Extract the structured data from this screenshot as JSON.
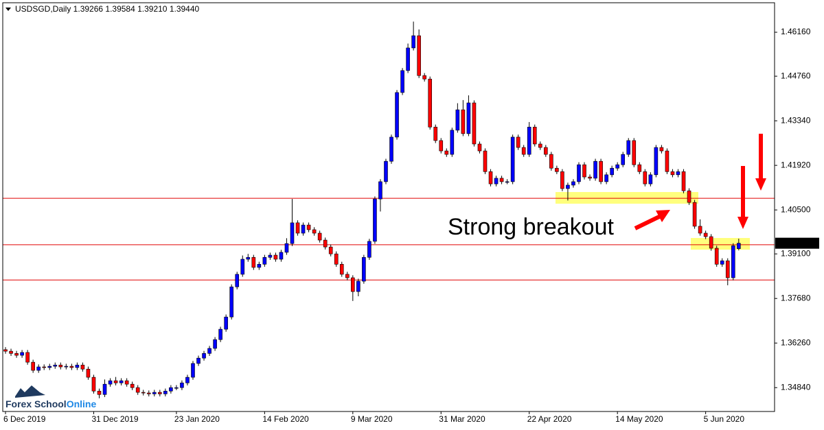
{
  "chart_data": {
    "type": "candlestick",
    "title": "USDSGD,Daily  1.39266 1.39584 1.39210 1.39440",
    "annotation": "Strong breakout",
    "watermark": [
      "Forex School",
      "Online"
    ],
    "up_color": "#0000ff",
    "down_color": "#ff0000",
    "level_color": "#e00000",
    "ylim": [
      1.3408,
      1.471
    ],
    "yticks": [
      {
        "value": 1.4616,
        "label": "1.46160"
      },
      {
        "value": 1.4476,
        "label": "1.44760"
      },
      {
        "value": 1.4334,
        "label": "1.43340"
      },
      {
        "value": 1.4192,
        "label": "1.41920"
      },
      {
        "value": 1.405,
        "label": "1.40500"
      },
      {
        "value": 1.391,
        "label": "1.39100"
      },
      {
        "value": 1.3768,
        "label": "1.37680"
      },
      {
        "value": 1.3626,
        "label": "1.36260"
      },
      {
        "value": 1.3484,
        "label": "1.34840"
      }
    ],
    "price_label": {
      "value": 1.3944,
      "label": "1.39440"
    },
    "levels": [
      1.4087,
      1.3939,
      1.3827
    ],
    "categories": [
      "6 Dec 2019",
      null,
      null,
      null,
      null,
      null,
      null,
      null,
      null,
      null,
      null,
      null,
      null,
      null,
      null,
      null,
      "31 Dec 2019",
      null,
      null,
      null,
      null,
      null,
      null,
      null,
      null,
      null,
      null,
      null,
      null,
      null,
      null,
      "23 Jan 2020",
      null,
      null,
      null,
      null,
      null,
      null,
      null,
      null,
      null,
      null,
      null,
      null,
      null,
      null,
      null,
      "14 Feb 2020",
      null,
      null,
      null,
      null,
      null,
      null,
      null,
      null,
      null,
      null,
      null,
      null,
      null,
      null,
      null,
      "9 Mar 2020",
      null,
      null,
      null,
      null,
      null,
      null,
      null,
      null,
      null,
      null,
      null,
      null,
      null,
      null,
      null,
      "31 Mar 2020",
      null,
      null,
      null,
      null,
      null,
      null,
      null,
      null,
      null,
      null,
      null,
      null,
      null,
      null,
      null,
      "22 Apr 2020",
      null,
      null,
      null,
      null,
      null,
      null,
      null,
      null,
      null,
      null,
      null,
      null,
      null,
      null,
      null,
      "14 May 2020",
      null,
      null,
      null,
      null,
      null,
      null,
      null,
      null,
      null,
      null,
      null,
      null,
      null,
      null,
      null,
      "5 Jun 2020",
      null,
      null,
      null,
      null,
      null,
      null
    ],
    "open": [
      1.3605,
      1.36,
      1.3593,
      1.3587,
      1.3596,
      1.3565,
      1.3539,
      1.355,
      1.3548,
      1.3552,
      1.3556,
      1.355,
      1.3552,
      1.3548,
      1.3556,
      1.3543,
      1.3517,
      1.3473,
      1.3462,
      1.3495,
      1.3506,
      1.3499,
      1.3506,
      1.3495,
      1.3484,
      1.3469,
      1.3467,
      1.3464,
      1.3469,
      1.3464,
      1.3473,
      1.3484,
      1.3484,
      1.3499,
      1.3517,
      1.3561,
      1.3578,
      1.3593,
      1.3609,
      1.3637,
      1.367,
      1.3709,
      1.3805,
      1.3845,
      1.3893,
      1.3899,
      1.3867,
      1.3877,
      1.3899,
      1.3906,
      1.3893,
      1.3915,
      1.3943,
      1.4009,
      1.3976,
      1.4002,
      1.3987,
      1.3976,
      1.3954,
      1.3932,
      1.391,
      1.3877,
      1.3845,
      1.3834,
      1.379,
      1.3823,
      1.3899,
      1.395,
      1.4085,
      1.414,
      1.4205,
      1.4282,
      1.4424,
      1.4494,
      1.4566,
      1.4605,
      1.4478,
      1.4467,
      1.4314,
      1.4271,
      1.4238,
      1.4227,
      1.4304,
      1.4369,
      1.4293,
      1.4391,
      1.426,
      1.4238,
      1.4172,
      1.4133,
      1.4151,
      1.414,
      1.414,
      1.4282,
      1.4249,
      1.4227,
      1.4314,
      1.426,
      1.4249,
      1.4227,
      1.4183,
      1.4172,
      1.4118,
      1.4129,
      1.414,
      1.4194,
      1.4155,
      1.4151,
      1.4205,
      1.414,
      1.4162,
      1.4183,
      1.4194,
      1.4227,
      1.4271,
      1.4194,
      1.4172,
      1.4133,
      1.4162,
      1.4249,
      1.4238,
      1.4172,
      1.4162,
      1.4172,
      1.4111,
      1.4074,
      1.3998,
      1.3976,
      1.3965,
      1.3928,
      1.3877,
      1.3888,
      1.3834,
      1.39266
    ],
    "high": [
      1.3613,
      1.3608,
      1.3601,
      1.3604,
      1.3604,
      1.3573,
      1.3558,
      1.3558,
      1.356,
      1.3564,
      1.3564,
      1.356,
      1.356,
      1.3564,
      1.3564,
      1.3551,
      1.3525,
      1.3481,
      1.351,
      1.3514,
      1.3518,
      1.3514,
      1.3514,
      1.3503,
      1.3492,
      1.3477,
      1.3475,
      1.3477,
      1.3477,
      1.3481,
      1.3492,
      1.3492,
      1.3507,
      1.3525,
      1.3569,
      1.3586,
      1.3601,
      1.3617,
      1.3645,
      1.3678,
      1.3717,
      1.3813,
      1.3853,
      1.3905,
      1.391,
      1.3907,
      1.3885,
      1.3907,
      1.3914,
      1.3914,
      1.3923,
      1.396,
      1.4085,
      1.4017,
      1.401,
      1.401,
      1.3995,
      1.3984,
      1.3962,
      1.394,
      1.3918,
      1.3885,
      1.3853,
      1.3842,
      1.3831,
      1.3907,
      1.3958,
      1.4093,
      1.4148,
      1.4213,
      1.429,
      1.4432,
      1.4502,
      1.458,
      1.465,
      1.4625,
      1.4486,
      1.4475,
      1.4322,
      1.4279,
      1.4246,
      1.4312,
      1.439,
      1.44,
      1.4415,
      1.4399,
      1.4268,
      1.4246,
      1.418,
      1.4159,
      1.4159,
      1.4148,
      1.429,
      1.429,
      1.4257,
      1.433,
      1.4322,
      1.4268,
      1.4257,
      1.4235,
      1.4191,
      1.418,
      1.4137,
      1.4148,
      1.4202,
      1.4202,
      1.4163,
      1.4213,
      1.4213,
      1.417,
      1.4191,
      1.4202,
      1.4235,
      1.4279,
      1.4279,
      1.4202,
      1.418,
      1.417,
      1.4257,
      1.4257,
      1.4246,
      1.418,
      1.418,
      1.418,
      1.4119,
      1.4082,
      1.402,
      1.3984,
      1.3973,
      1.3936,
      1.3896,
      1.3896,
      1.3944,
      1.39584
    ],
    "low": [
      1.3592,
      1.3585,
      1.3579,
      1.3579,
      1.3557,
      1.3531,
      1.3531,
      1.354,
      1.354,
      1.3544,
      1.3542,
      1.3542,
      1.354,
      1.354,
      1.3535,
      1.3509,
      1.3465,
      1.345,
      1.3454,
      1.3487,
      1.3491,
      1.3491,
      1.3487,
      1.3476,
      1.3461,
      1.3459,
      1.3456,
      1.3456,
      1.3456,
      1.3456,
      1.3465,
      1.3476,
      1.3476,
      1.3491,
      1.3509,
      1.3553,
      1.357,
      1.3585,
      1.3601,
      1.3629,
      1.3662,
      1.3701,
      1.3797,
      1.3837,
      1.3885,
      1.3859,
      1.3859,
      1.3869,
      1.3891,
      1.3885,
      1.3885,
      1.3907,
      1.3935,
      1.3968,
      1.3968,
      1.3979,
      1.3968,
      1.3946,
      1.3924,
      1.3902,
      1.3869,
      1.3837,
      1.3826,
      1.376,
      1.3775,
      1.3815,
      1.3891,
      1.3942,
      1.4045,
      1.4132,
      1.4197,
      1.4274,
      1.4416,
      1.4486,
      1.4558,
      1.447,
      1.4459,
      1.4306,
      1.4263,
      1.423,
      1.4219,
      1.4219,
      1.4296,
      1.4285,
      1.4285,
      1.4252,
      1.423,
      1.4164,
      1.4125,
      1.4125,
      1.4132,
      1.4132,
      1.4132,
      1.4241,
      1.4219,
      1.4219,
      1.4252,
      1.4241,
      1.4219,
      1.4175,
      1.4164,
      1.411,
      1.408,
      1.4121,
      1.4132,
      1.4147,
      1.4143,
      1.4143,
      1.4132,
      1.4132,
      1.4154,
      1.4175,
      1.4186,
      1.4219,
      1.4186,
      1.4164,
      1.4125,
      1.4125,
      1.4154,
      1.423,
      1.4164,
      1.4154,
      1.4154,
      1.4103,
      1.4066,
      1.399,
      1.3968,
      1.3957,
      1.392,
      1.3869,
      1.3869,
      1.381,
      1.3826,
      1.3921
    ],
    "close": [
      1.36,
      1.3593,
      1.3587,
      1.3596,
      1.3565,
      1.3539,
      1.355,
      1.3548,
      1.3552,
      1.3556,
      1.355,
      1.3552,
      1.3548,
      1.3556,
      1.3543,
      1.3517,
      1.3473,
      1.3462,
      1.3495,
      1.3506,
      1.3499,
      1.3506,
      1.3495,
      1.3484,
      1.3469,
      1.3467,
      1.3464,
      1.3469,
      1.3464,
      1.3473,
      1.3484,
      1.3484,
      1.3499,
      1.3517,
      1.3561,
      1.3578,
      1.3593,
      1.3609,
      1.3637,
      1.367,
      1.3709,
      1.3805,
      1.3845,
      1.3893,
      1.3899,
      1.3867,
      1.3877,
      1.3899,
      1.3906,
      1.3893,
      1.3915,
      1.3943,
      1.4009,
      1.3976,
      1.4002,
      1.3987,
      1.3976,
      1.3954,
      1.3932,
      1.391,
      1.3877,
      1.3845,
      1.3834,
      1.379,
      1.3823,
      1.3899,
      1.395,
      1.4085,
      1.414,
      1.4205,
      1.4282,
      1.4424,
      1.4494,
      1.4566,
      1.4605,
      1.4478,
      1.4467,
      1.4314,
      1.4271,
      1.4238,
      1.4227,
      1.4304,
      1.4369,
      1.4293,
      1.4391,
      1.426,
      1.4238,
      1.4172,
      1.4133,
      1.4151,
      1.414,
      1.414,
      1.4282,
      1.4249,
      1.4227,
      1.4314,
      1.426,
      1.4249,
      1.4227,
      1.4183,
      1.4172,
      1.4118,
      1.4129,
      1.414,
      1.4194,
      1.4155,
      1.4151,
      1.4205,
      1.414,
      1.4162,
      1.4183,
      1.4194,
      1.4227,
      1.4271,
      1.4194,
      1.4172,
      1.4133,
      1.4162,
      1.4249,
      1.4238,
      1.4172,
      1.4162,
      1.4172,
      1.4111,
      1.4074,
      1.3998,
      1.3976,
      1.3965,
      1.3928,
      1.3877,
      1.3888,
      1.3834,
      1.3936,
      1.3944
    ]
  }
}
